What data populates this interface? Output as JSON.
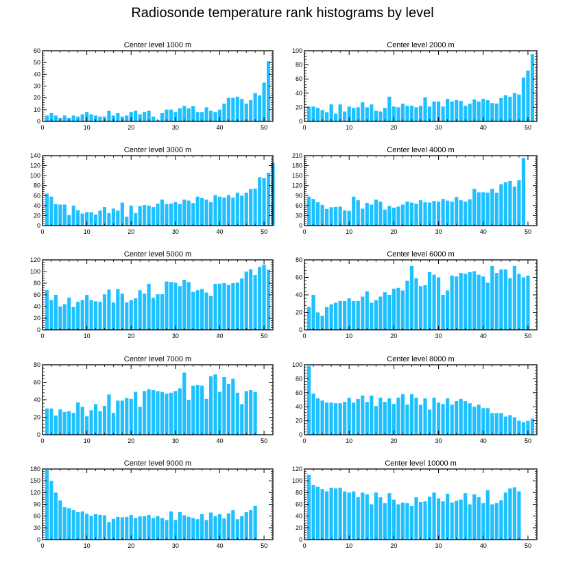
{
  "title": "Radiosonde temperature rank histograms by level",
  "bar_color": "#1fc0ff",
  "chart_data": [
    {
      "type": "bar",
      "title": "Center level 1000 m",
      "xlim": [
        0,
        52
      ],
      "ylim": [
        0,
        60
      ],
      "xticks": [
        0,
        10,
        20,
        30,
        40,
        50
      ],
      "yticks": [
        0,
        10,
        20,
        30,
        40,
        50,
        60
      ],
      "values": [
        5,
        7,
        5,
        3,
        5,
        3,
        5,
        4,
        6,
        8,
        6,
        5,
        4,
        4,
        9,
        5,
        7,
        4,
        5,
        8,
        9,
        6,
        8,
        9,
        4,
        1,
        7,
        10,
        10,
        8,
        11,
        13,
        11,
        13,
        8,
        8,
        12,
        9,
        8,
        10,
        15,
        20,
        20,
        21,
        19,
        15,
        18,
        24,
        22,
        33,
        51
      ]
    },
    {
      "type": "bar",
      "title": "Center level 2000 m",
      "xlim": [
        0,
        52
      ],
      "ylim": [
        0,
        100
      ],
      "xticks": [
        0,
        10,
        20,
        30,
        40,
        50
      ],
      "yticks": [
        0,
        20,
        40,
        60,
        80,
        100
      ],
      "values": [
        21,
        21,
        19,
        16,
        13,
        24,
        11,
        24,
        14,
        21,
        19,
        20,
        27,
        20,
        24,
        15,
        14,
        19,
        35,
        21,
        20,
        25,
        22,
        22,
        20,
        22,
        34,
        21,
        28,
        28,
        21,
        32,
        28,
        30,
        29,
        22,
        25,
        31,
        28,
        32,
        30,
        26,
        25,
        33,
        37,
        35,
        40,
        38,
        62,
        72,
        95
      ]
    },
    {
      "type": "bar",
      "title": "Center level 3000 m",
      "xlim": [
        0,
        52
      ],
      "ylim": [
        0,
        140
      ],
      "xticks": [
        0,
        10,
        20,
        30,
        40,
        50
      ],
      "yticks": [
        0,
        20,
        40,
        60,
        80,
        100,
        120,
        140
      ],
      "values": [
        64,
        58,
        43,
        42,
        42,
        21,
        40,
        31,
        24,
        27,
        27,
        22,
        30,
        37,
        25,
        34,
        30,
        46,
        18,
        40,
        25,
        39,
        41,
        40,
        37,
        44,
        52,
        43,
        44,
        47,
        43,
        52,
        50,
        45,
        58,
        55,
        52,
        47,
        61,
        58,
        56,
        61,
        56,
        66,
        60,
        66,
        73,
        74,
        97,
        95,
        106,
        125
      ]
    },
    {
      "type": "bar",
      "title": "Center level 4000 m",
      "xlim": [
        0,
        52
      ],
      "ylim": [
        0,
        210
      ],
      "xticks": [
        0,
        10,
        20,
        30,
        40,
        50
      ],
      "yticks": [
        0,
        30,
        60,
        90,
        120,
        150,
        180,
        210
      ],
      "values": [
        87,
        80,
        70,
        62,
        50,
        55,
        56,
        57,
        46,
        44,
        87,
        76,
        51,
        68,
        63,
        78,
        72,
        48,
        59,
        54,
        57,
        63,
        72,
        69,
        66,
        76,
        70,
        69,
        74,
        72,
        80,
        75,
        72,
        86,
        76,
        72,
        79,
        110,
        100,
        100,
        99,
        110,
        99,
        124,
        130,
        134,
        117,
        136,
        203
      ]
    },
    {
      "type": "bar",
      "title": "Center level 5000 m",
      "xlim": [
        0,
        52
      ],
      "ylim": [
        0,
        120
      ],
      "xticks": [
        0,
        10,
        20,
        30,
        40,
        50
      ],
      "yticks": [
        0,
        20,
        40,
        60,
        80,
        100,
        120
      ],
      "values": [
        68,
        51,
        60,
        40,
        44,
        55,
        39,
        48,
        51,
        60,
        51,
        49,
        48,
        61,
        69,
        47,
        70,
        62,
        47,
        51,
        54,
        68,
        62,
        79,
        55,
        61,
        61,
        83,
        82,
        81,
        75,
        86,
        82,
        65,
        68,
        70,
        64,
        58,
        79,
        79,
        80,
        77,
        80,
        81,
        88,
        100,
        104,
        94,
        108,
        112,
        103
      ]
    },
    {
      "type": "bar",
      "title": "Center level 6000 m",
      "xlim": [
        0,
        52
      ],
      "ylim": [
        0,
        80
      ],
      "xticks": [
        0,
        10,
        20,
        30,
        40,
        50
      ],
      "yticks": [
        0,
        20,
        40,
        60,
        80
      ],
      "values": [
        26,
        40,
        20,
        16,
        26,
        29,
        31,
        33,
        33,
        36,
        33,
        33,
        38,
        44,
        31,
        34,
        38,
        43,
        40,
        47,
        48,
        45,
        56,
        73,
        59,
        50,
        51,
        66,
        63,
        60,
        40,
        45,
        62,
        61,
        65,
        64,
        66,
        67,
        63,
        61,
        54,
        73,
        65,
        69,
        69,
        59,
        73,
        64,
        60,
        62
      ]
    },
    {
      "type": "bar",
      "title": "Center level 7000 m",
      "xlim": [
        0,
        52
      ],
      "ylim": [
        0,
        80
      ],
      "xticks": [
        0,
        10,
        20,
        30,
        40,
        50
      ],
      "yticks": [
        0,
        20,
        40,
        60,
        80
      ],
      "values": [
        30,
        30,
        22,
        29,
        26,
        27,
        25,
        37,
        32,
        21,
        28,
        35,
        27,
        33,
        46,
        25,
        39,
        39,
        42,
        41,
        49,
        32,
        50,
        52,
        51,
        50,
        49,
        47,
        48,
        50,
        53,
        71,
        40,
        56,
        57,
        56,
        41,
        67,
        69,
        49,
        66,
        58,
        64,
        48,
        35,
        50,
        51,
        49
      ]
    },
    {
      "type": "bar",
      "title": "Center level 8000 m",
      "xlim": [
        0,
        52
      ],
      "ylim": [
        0,
        100
      ],
      "xticks": [
        0,
        10,
        20,
        30,
        40,
        50
      ],
      "yticks": [
        0,
        20,
        40,
        60,
        80,
        100
      ],
      "values": [
        98,
        59,
        52,
        49,
        46,
        46,
        45,
        45,
        47,
        53,
        46,
        51,
        56,
        47,
        56,
        41,
        53,
        47,
        52,
        44,
        53,
        58,
        43,
        58,
        53,
        43,
        52,
        36,
        53,
        46,
        44,
        52,
        43,
        48,
        51,
        48,
        45,
        40,
        43,
        38,
        38,
        31,
        31,
        31,
        26,
        28,
        25,
        20,
        18,
        20,
        23
      ]
    },
    {
      "type": "bar",
      "title": "Center level 9000 m",
      "xlim": [
        0,
        52
      ],
      "ylim": [
        0,
        180
      ],
      "xticks": [
        0,
        10,
        20,
        30,
        40,
        50
      ],
      "yticks": [
        0,
        30,
        60,
        90,
        120,
        150,
        180
      ],
      "values": [
        178,
        150,
        120,
        100,
        83,
        80,
        75,
        70,
        72,
        66,
        61,
        65,
        63,
        62,
        45,
        53,
        58,
        57,
        58,
        63,
        55,
        59,
        60,
        63,
        55,
        60,
        55,
        50,
        72,
        50,
        70,
        62,
        58,
        55,
        52,
        65,
        50,
        69,
        60,
        65,
        54,
        67,
        75,
        52,
        60,
        70,
        75,
        86
      ]
    },
    {
      "type": "bar",
      "title": "Center level 10000 m",
      "xlim": [
        0,
        52
      ],
      "ylim": [
        0,
        120
      ],
      "xticks": [
        0,
        10,
        20,
        30,
        40,
        50
      ],
      "yticks": [
        0,
        20,
        40,
        60,
        80,
        100,
        120
      ],
      "values": [
        110,
        93,
        90,
        86,
        82,
        88,
        87,
        88,
        82,
        80,
        82,
        72,
        80,
        77,
        60,
        80,
        72,
        62,
        79,
        68,
        60,
        63,
        62,
        57,
        72,
        64,
        65,
        73,
        80,
        70,
        65,
        78,
        63,
        66,
        68,
        79,
        60,
        77,
        72,
        62,
        84,
        60,
        62,
        67,
        80,
        87,
        89,
        82
      ]
    }
  ]
}
